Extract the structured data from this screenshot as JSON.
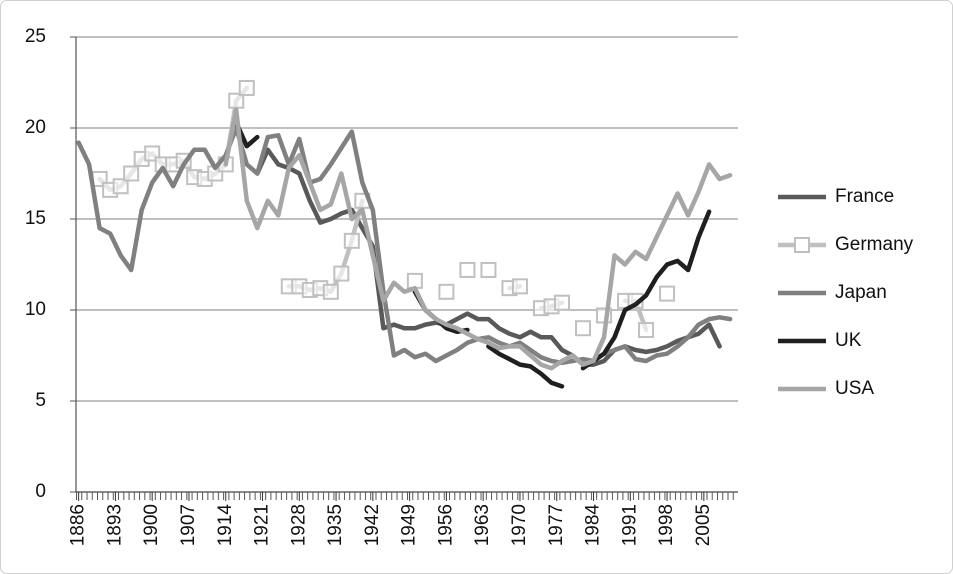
{
  "chart_data": {
    "type": "line",
    "x": [
      1886,
      1888,
      1890,
      1892,
      1894,
      1896,
      1898,
      1900,
      1902,
      1904,
      1906,
      1908,
      1910,
      1912,
      1914,
      1916,
      1918,
      1920,
      1922,
      1924,
      1926,
      1928,
      1930,
      1932,
      1934,
      1936,
      1938,
      1940,
      1942,
      1944,
      1946,
      1948,
      1950,
      1952,
      1954,
      1956,
      1958,
      1960,
      1962,
      1964,
      1966,
      1968,
      1970,
      1972,
      1974,
      1976,
      1978,
      1980,
      1982,
      1984,
      1986,
      1988,
      1990,
      1992,
      1994,
      1996,
      1998,
      2000,
      2002,
      2004,
      2006,
      2008,
      2010
    ],
    "xlim": [
      1885.5,
      2011.5
    ],
    "xticks": [
      1886,
      1893,
      1900,
      1907,
      1914,
      1921,
      1928,
      1935,
      1942,
      1949,
      1956,
      1963,
      1970,
      1977,
      1984,
      1991,
      1998,
      2005
    ],
    "ylim": [
      0,
      25
    ],
    "yticks": [
      0,
      5,
      10,
      15,
      20,
      25
    ],
    "grid": true,
    "legend": "right",
    "series": [
      {
        "name": "France",
        "color": "#595959",
        "values": [
          null,
          null,
          null,
          null,
          null,
          null,
          null,
          null,
          null,
          null,
          null,
          null,
          null,
          null,
          null,
          null,
          null,
          17.5,
          18.8,
          18,
          17.8,
          17.5,
          16,
          14.8,
          15,
          15.3,
          15.5,
          14.5,
          13.5,
          9,
          9.2,
          9,
          9,
          9.2,
          9.3,
          9.2,
          9.5,
          9.8,
          9.5,
          9.5,
          9,
          8.7,
          8.5,
          8.8,
          8.5,
          8.5,
          7.8,
          7.5,
          7,
          7,
          7.2,
          7.8,
          8,
          7.8,
          7.7,
          7.8,
          8,
          8.3,
          8.5,
          8.7,
          9.2,
          8,
          null
        ]
      },
      {
        "name": "Germany",
        "color": "#c0c0c0",
        "marker": "square",
        "values": [
          null,
          null,
          17.2,
          16.6,
          16.8,
          17.5,
          18.3,
          18.6,
          18,
          18,
          18.2,
          17.3,
          17.2,
          17.5,
          18,
          21.5,
          22.2,
          null,
          null,
          null,
          11.3,
          11.3,
          11.1,
          11.2,
          11,
          12,
          13.8,
          16,
          null,
          null,
          null,
          null,
          11.6,
          null,
          null,
          11,
          null,
          12.2,
          null,
          12.2,
          null,
          11.2,
          11.3,
          null,
          10.1,
          10.2,
          10.4,
          null,
          9,
          null,
          9.7,
          null,
          10.5,
          10.5,
          8.9,
          null,
          10.9,
          null,
          null,
          null,
          null,
          null,
          null
        ]
      },
      {
        "name": "Japan",
        "color": "#808080",
        "values": [
          19.2,
          18,
          14.5,
          14.2,
          13,
          12.2,
          15.5,
          17,
          17.8,
          16.8,
          18,
          18.8,
          18.8,
          17.8,
          18.5,
          20,
          18,
          17.5,
          19.5,
          19.6,
          18,
          19.4,
          17,
          17.2,
          18,
          18.9,
          19.8,
          17,
          15.5,
          11,
          7.5,
          7.8,
          7.4,
          7.6,
          7.2,
          7.5,
          7.8,
          8.2,
          8.4,
          8.5,
          8.2,
          8,
          8.2,
          7.8,
          7.4,
          7.2,
          7.1,
          7.2,
          7.3,
          7.2,
          7.6,
          7.8,
          8,
          7.3,
          7.2,
          7.5,
          7.6,
          8,
          8.5,
          9.2,
          9.5,
          9.6,
          9.5
        ]
      },
      {
        "name": "UK",
        "color": "#1f1f1f",
        "values": [
          null,
          null,
          null,
          null,
          null,
          null,
          null,
          null,
          null,
          null,
          null,
          null,
          null,
          null,
          null,
          20.3,
          19,
          19.5,
          null,
          null,
          null,
          null,
          null,
          null,
          null,
          null,
          null,
          null,
          null,
          null,
          null,
          null,
          11,
          10,
          9.5,
          9,
          8.8,
          8.9,
          null,
          8,
          7.6,
          7.3,
          7,
          6.9,
          6.5,
          6,
          5.8,
          null,
          6.8,
          7.2,
          7.6,
          8.5,
          10,
          10.3,
          10.8,
          11.8,
          12.5,
          12.7,
          12.2,
          14,
          15.4,
          null,
          null
        ]
      },
      {
        "name": "USA",
        "color": "#a6a6a6",
        "values": [
          null,
          null,
          null,
          null,
          null,
          null,
          null,
          null,
          null,
          null,
          null,
          null,
          null,
          null,
          18,
          21,
          16,
          14.5,
          16,
          15.2,
          17.8,
          18.5,
          17,
          15.5,
          15.8,
          17.5,
          15,
          15.5,
          13,
          10.5,
          11.5,
          11,
          11.2,
          10,
          9.5,
          9.2,
          9,
          8.7,
          8.4,
          8.2,
          7.9,
          8,
          8,
          7.5,
          7,
          6.8,
          7.2,
          7.5,
          7,
          7.2,
          8.5,
          13,
          12.5,
          13.2,
          12.8,
          14,
          15.2,
          16.4,
          15.2,
          16.5,
          18,
          17.2,
          17.4
        ]
      }
    ]
  }
}
